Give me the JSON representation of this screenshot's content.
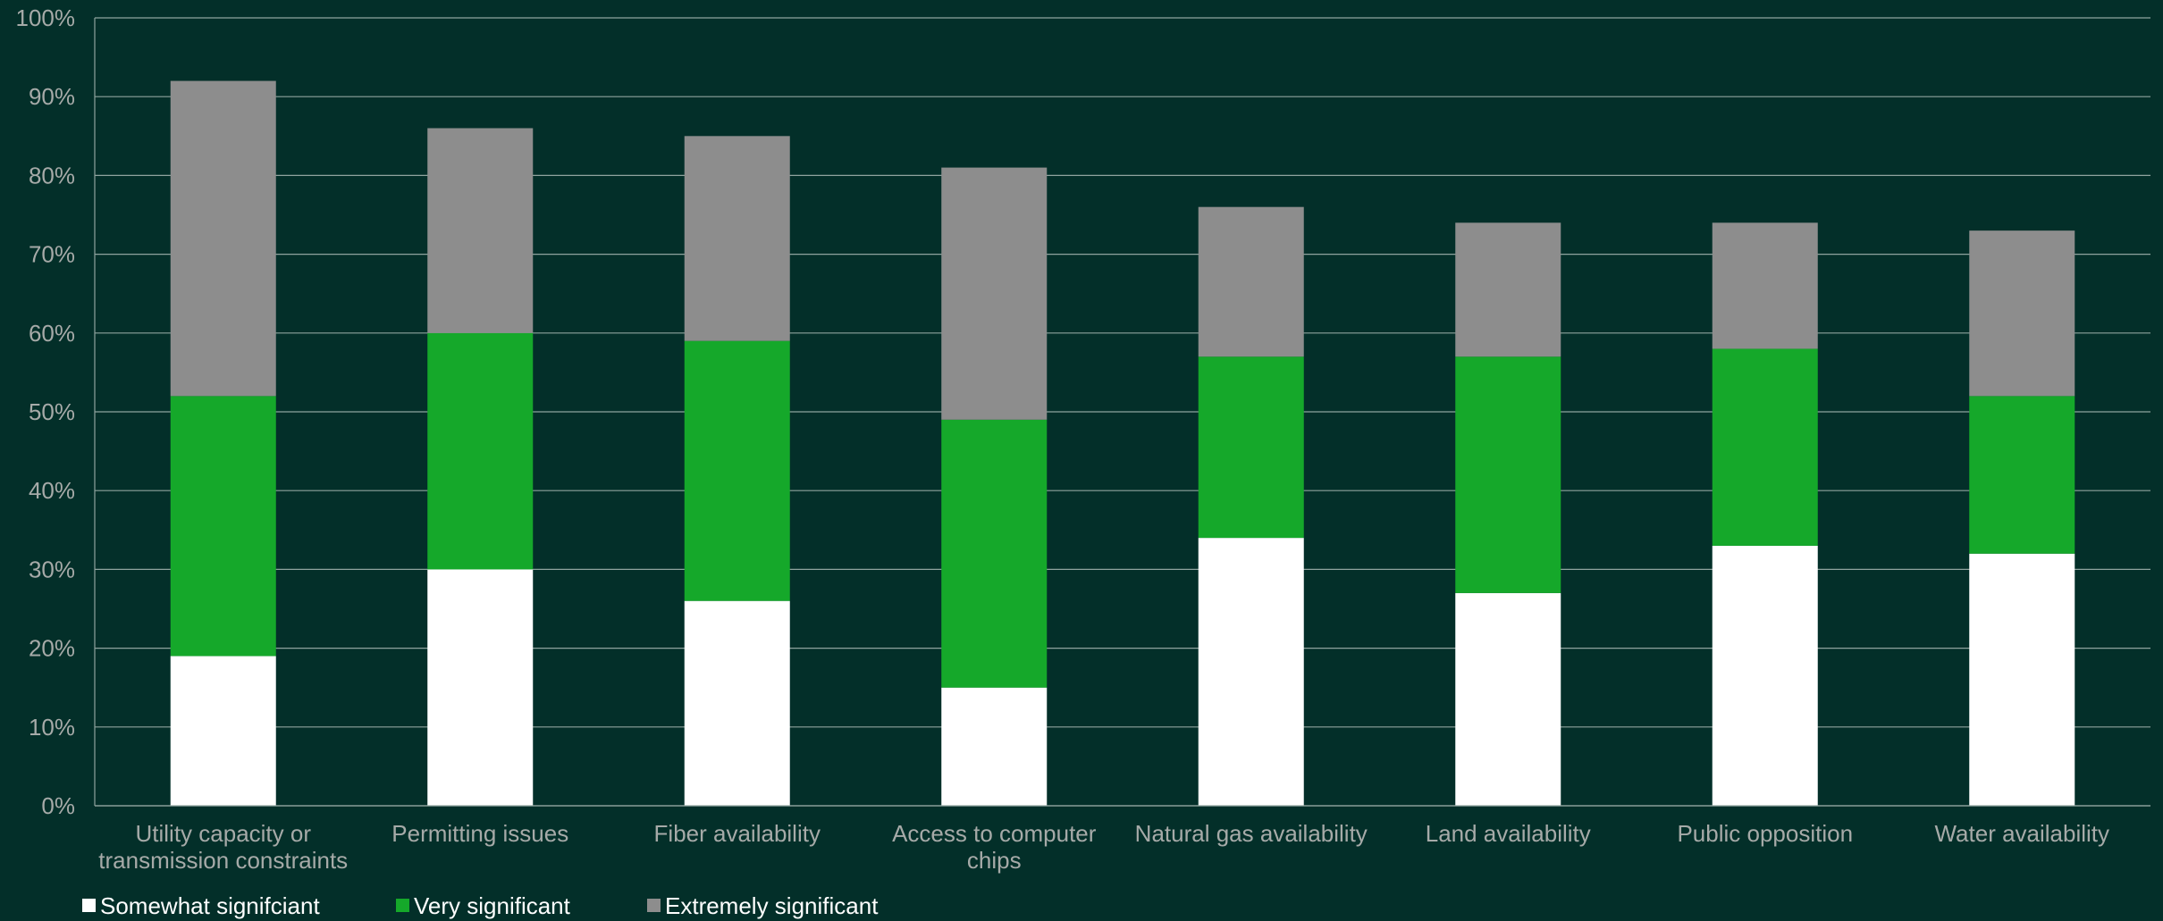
{
  "chart_data": {
    "type": "bar",
    "stacked": true,
    "categories": [
      [
        "Utility capacity or",
        "transmission constraints"
      ],
      [
        "Permitting issues"
      ],
      [
        "Fiber availability"
      ],
      [
        "Access to computer",
        "chips"
      ],
      [
        "Natural gas availability"
      ],
      [
        "Land availability"
      ],
      [
        "Public opposition"
      ],
      [
        "Water availability"
      ]
    ],
    "series": [
      {
        "name": "Somewhat signifciant",
        "color": "#ffffff",
        "values": [
          19,
          30,
          26,
          15,
          34,
          27,
          33,
          32
        ]
      },
      {
        "name": "Very significant",
        "color": "#15a82a",
        "values": [
          33,
          30,
          33,
          34,
          23,
          30,
          25,
          20
        ]
      },
      {
        "name": "Extremely significant",
        "color": "#8d8d8d",
        "values": [
          40,
          26,
          26,
          32,
          19,
          17,
          16,
          21
        ]
      }
    ],
    "ylim": [
      0,
      100
    ],
    "yticks": [
      0,
      10,
      20,
      30,
      40,
      50,
      60,
      70,
      80,
      90,
      100
    ],
    "ytick_suffix": "%",
    "grid": true,
    "legend_position": "bottom-left",
    "background": "#032f29",
    "grid_color": "#8fa39e",
    "text_color": "#a6aaa8"
  }
}
